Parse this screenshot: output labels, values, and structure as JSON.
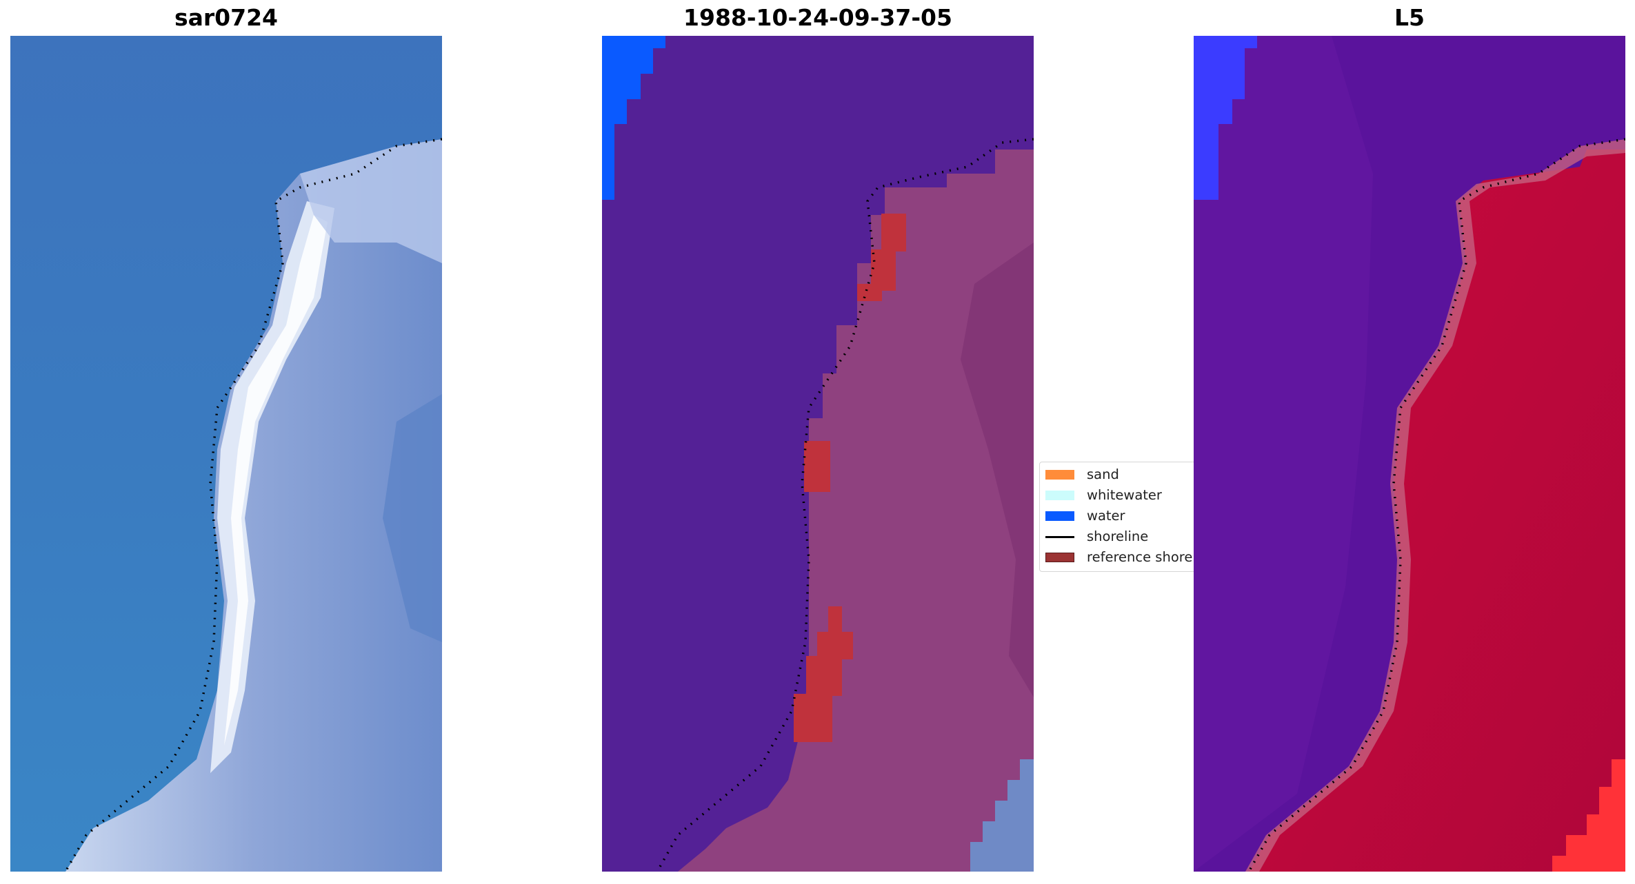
{
  "panels": [
    {
      "title": "sar0724"
    },
    {
      "title": "1988-10-24-09-37-05"
    },
    {
      "title": "L5"
    }
  ],
  "legend": {
    "items": [
      {
        "label": "sand",
        "color": "#ff8c3a",
        "kind": "patch"
      },
      {
        "label": "whitewater",
        "color": "#ccfcfc",
        "kind": "patch"
      },
      {
        "label": "water",
        "color": "#0a5aff",
        "kind": "patch"
      },
      {
        "label": "shoreline",
        "color": "#000000",
        "kind": "line"
      },
      {
        "label": "reference shore",
        "color": "#9b3333",
        "kind": "patch"
      }
    ]
  },
  "colors": {
    "ocean_rgb": "#3a75bd",
    "surf": "#e6ecf8",
    "classified_water": "#542196",
    "classified_land": "#8f417f",
    "reference_shore": "#c0323c",
    "ndwi_water": "#5a139c",
    "ndwi_land": "#c30a3c"
  }
}
